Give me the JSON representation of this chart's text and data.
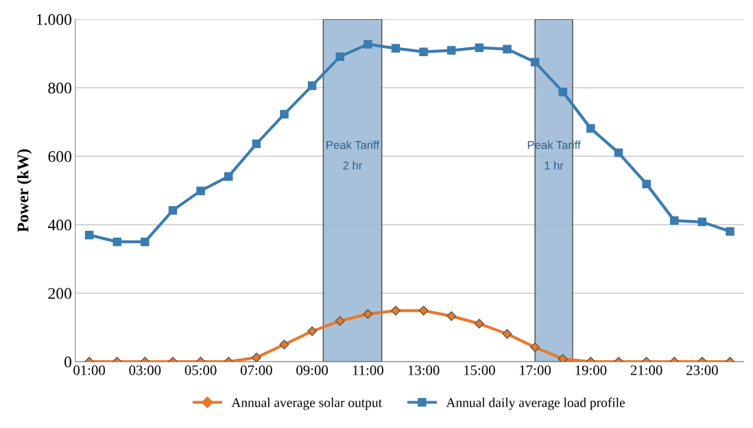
{
  "chart_data": {
    "type": "line",
    "ylabel": "Power (kW)",
    "x": [
      1,
      2,
      3,
      4,
      5,
      6,
      7,
      8,
      9,
      10,
      11,
      12,
      13,
      14,
      15,
      16,
      17,
      18,
      19,
      20,
      21,
      22,
      23,
      24
    ],
    "series": [
      {
        "name": "Annual average solar output",
        "color": "#e8792a",
        "marker": "diamond",
        "values": [
          0,
          0,
          0,
          0,
          0,
          0,
          12,
          50,
          89,
          119,
          139,
          149,
          149,
          133,
          111,
          81,
          42,
          8,
          0,
          0,
          0,
          0,
          0,
          0
        ]
      },
      {
        "name": "Annual daily average load profile",
        "color": "#3a7cb0",
        "marker": "square",
        "values": [
          370,
          350,
          350,
          442,
          499,
          541,
          636,
          723,
          806,
          891,
          927,
          915,
          905,
          909,
          917,
          913,
          875,
          788,
          681,
          610,
          519,
          412,
          408,
          380
        ]
      }
    ],
    "xlim": [
      0.5,
      24.5
    ],
    "xticks": [
      {
        "value": 1,
        "label": "01:00"
      },
      {
        "value": 3,
        "label": "03:00"
      },
      {
        "value": 5,
        "label": "05:00"
      },
      {
        "value": 7,
        "label": "07:00"
      },
      {
        "value": 9,
        "label": "09:00"
      },
      {
        "value": 11,
        "label": "11:00"
      },
      {
        "value": 13,
        "label": "13:00"
      },
      {
        "value": 15,
        "label": "15:00"
      },
      {
        "value": 17,
        "label": "17:00"
      },
      {
        "value": 19,
        "label": "19:00"
      },
      {
        "value": 21,
        "label": "21:00"
      },
      {
        "value": 23,
        "label": "23:00"
      }
    ],
    "ylim": [
      0,
      1000
    ],
    "yticks": [
      0,
      200,
      400,
      600,
      800,
      {
        "value": 1000,
        "label": "1.000"
      }
    ],
    "bands": [
      {
        "axis": "x",
        "from": 9.4,
        "to": 11.5,
        "label": "Peak Tariff\n2 hr",
        "color": "#9fbbd6"
      },
      {
        "axis": "x",
        "from": 17.0,
        "to": 18.35,
        "label": "Peak Tariff\n1 hr",
        "color": "#9fbbd6"
      }
    ],
    "grid": "y",
    "legend": "bottom",
    "line_style": "solid"
  }
}
